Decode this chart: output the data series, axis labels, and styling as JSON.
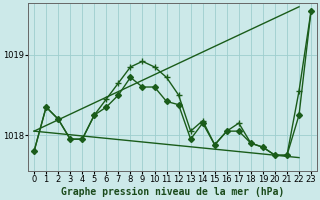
{
  "background_color": "#cce9e9",
  "grid_color": "#9ecece",
  "line_color": "#1a5c1a",
  "title": "Graphe pression niveau de la mer (hPa)",
  "xlim": [
    -0.5,
    23.5
  ],
  "ylim": [
    1017.55,
    1019.65
  ],
  "yticks": [
    1018,
    1019
  ],
  "xticks": [
    0,
    1,
    2,
    3,
    4,
    5,
    6,
    7,
    8,
    9,
    10,
    11,
    12,
    13,
    14,
    15,
    16,
    17,
    18,
    19,
    20,
    21,
    22,
    23
  ],
  "series_zigzag1": {
    "x": [
      0,
      1,
      2,
      3,
      4,
      5,
      6,
      7,
      8,
      9,
      10,
      11,
      12,
      13,
      14,
      15,
      16,
      17,
      18,
      19,
      20,
      21,
      22,
      23
    ],
    "y": [
      1017.8,
      1018.35,
      1018.2,
      1017.95,
      1017.95,
      1018.25,
      1018.35,
      1018.5,
      1018.72,
      1018.6,
      1018.6,
      1018.42,
      1018.38,
      1017.95,
      1018.15,
      1017.88,
      1018.05,
      1018.05,
      1017.9,
      1017.85,
      1017.75,
      1017.75,
      1018.25,
      1019.55
    ],
    "marker": "D",
    "markersize": 3,
    "linewidth": 1.0
  },
  "series_zigzag2": {
    "x": [
      0,
      1,
      2,
      3,
      4,
      5,
      6,
      7,
      8,
      9,
      10,
      11,
      12,
      13,
      14,
      15,
      16,
      17,
      18,
      19,
      20,
      21,
      22,
      23
    ],
    "y": [
      1017.8,
      1018.35,
      1018.2,
      1017.95,
      1017.95,
      1018.25,
      1018.45,
      1018.65,
      1018.85,
      1018.92,
      1018.85,
      1018.72,
      1018.5,
      1018.05,
      1018.18,
      1017.88,
      1018.05,
      1018.15,
      1017.9,
      1017.85,
      1017.75,
      1017.75,
      1018.55,
      1019.55
    ],
    "marker": "+",
    "markersize": 4,
    "linewidth": 1.0
  },
  "series_line_upper": {
    "x": [
      0,
      22
    ],
    "y": [
      1018.05,
      1019.6
    ]
  },
  "series_line_lower": {
    "x": [
      0,
      22
    ],
    "y": [
      1018.05,
      1017.72
    ]
  },
  "title_fontsize": 7,
  "tick_fontsize": 6,
  "linewidth": 1.0
}
